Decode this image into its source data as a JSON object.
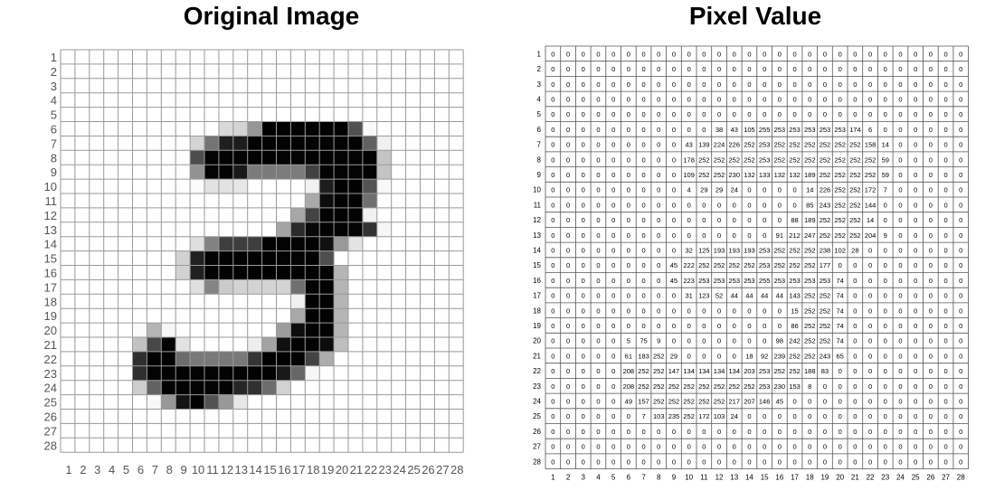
{
  "panels": {
    "left_title": "Original Image",
    "right_title": "Pixel Value"
  },
  "grid": {
    "size": 28,
    "pixels": [
      "0,0,0,0,0,0,0,0,0,0,0,0,0,0,0,0,0,0,0,0,0,0,0,0,0,0,0,0",
      "0,0,0,0,0,0,0,0,0,0,0,0,0,0,0,0,0,0,0,0,0,0,0,0,0,0,0,0",
      "0,0,0,0,0,0,0,0,0,0,0,0,0,0,0,0,0,0,0,0,0,0,0,0,0,0,0,0",
      "0,0,0,0,0,0,0,0,0,0,0,0,0,0,0,0,0,0,0,0,0,0,0,0,0,0,0,0",
      "0,0,0,0,0,0,0,0,0,0,0,0,0,0,0,0,0,0,0,0,0,0,0,0,0,0,0,0",
      "0,0,0,0,0,0,0,0,0,0,0,38,43,105,255,253,253,253,253,253,174,6,0,0,0,0,0,0",
      "0,0,0,0,0,0,0,0,0,43,139,224,226,252,253,252,252,252,252,252,252,158,14,0,0,0,0,0",
      "0,0,0,0,0,0,0,0,0,178,252,252,252,252,253,252,252,252,252,252,252,252,59,0,0,0,0,0",
      "0,0,0,0,0,0,0,0,0,109,252,252,230,132,133,132,132,189,252,252,252,252,59,0,0,0,0,0",
      "0,0,0,0,0,0,0,0,0,4,29,29,24,0,0,0,0,14,226,252,252,172,7,0,0,0,0,0",
      "0,0,0,0,0,0,0,0,0,0,0,0,0,0,0,0,0,85,243,252,252,144,0,0,0,0,0,0",
      "0,0,0,0,0,0,0,0,0,0,0,0,0,0,0,0,88,189,252,252,252,14,0,0,0,0,0,0",
      "0,0,0,0,0,0,0,0,0,0,0,0,0,0,0,91,212,247,252,252,252,204,9,0,0,0,0,0",
      "0,0,0,0,0,0,0,0,0,32,125,193,193,193,253,252,252,252,238,102,28,0,0,0,0,0,0,0",
      "0,0,0,0,0,0,0,0,45,222,252,252,252,252,253,252,252,252,177,0,0,0,0,0,0,0,0,0",
      "0,0,0,0,0,0,0,0,45,223,253,253,253,253,255,253,253,253,253,74,0,0,0,0,0,0,0,0",
      "0,0,0,0,0,0,0,0,0,31,123,52,44,44,44,44,143,252,252,74,0,0,0,0,0,0,0,0",
      "0,0,0,0,0,0,0,0,0,0,0,0,0,0,0,0,15,252,252,74,0,0,0,0,0,0,0,0",
      "0,0,0,0,0,0,0,0,0,0,0,0,0,0,0,0,86,252,252,74,0,0,0,0,0,0,0,0",
      "0,0,0,0,0,5,75,9,0,0,0,0,0,0,0,98,242,252,252,74,0,0,0,0,0,0,0,0",
      "0,0,0,0,0,61,183,252,29,0,0,0,0,18,92,239,252,252,243,65,0,0,0,0,0,0,0,0",
      "0,0,0,0,0,208,252,252,147,134,134,134,134,203,253,252,252,188,83,0,0,0,0,0,0,0,0,0",
      "0,0,0,0,0,208,252,252,252,252,252,252,252,252,253,230,153,8,0,0,0,0,0,0,0,0,0,0",
      "0,0,0,0,0,49,157,252,252,252,252,252,217,207,146,45,0,0,0,0,0,0,0,0,0,0,0,0",
      "0,0,0,0,0,0,7,103,235,252,172,103,24,0,0,0,0,0,0,0,0,0,0,0,0,0,0,0",
      "0,0,0,0,0,0,0,0,0,0,0,0,0,0,0,0,0,0,0,0,0,0,0,0,0,0,0,0",
      "0,0,0,0,0,0,0,0,0,0,0,0,0,0,0,0,0,0,0,0,0,0,0,0,0,0,0,0",
      "0,0,0,0,0,0,0,0,0,0,0,0,0,0,0,0,0,0,0,0,0,0,0,0,0,0,0,0"
    ]
  },
  "colors": {
    "left_grid_line": "#9a9a9a",
    "right_grid_line": "#555555",
    "axis_label": "#555555"
  }
}
